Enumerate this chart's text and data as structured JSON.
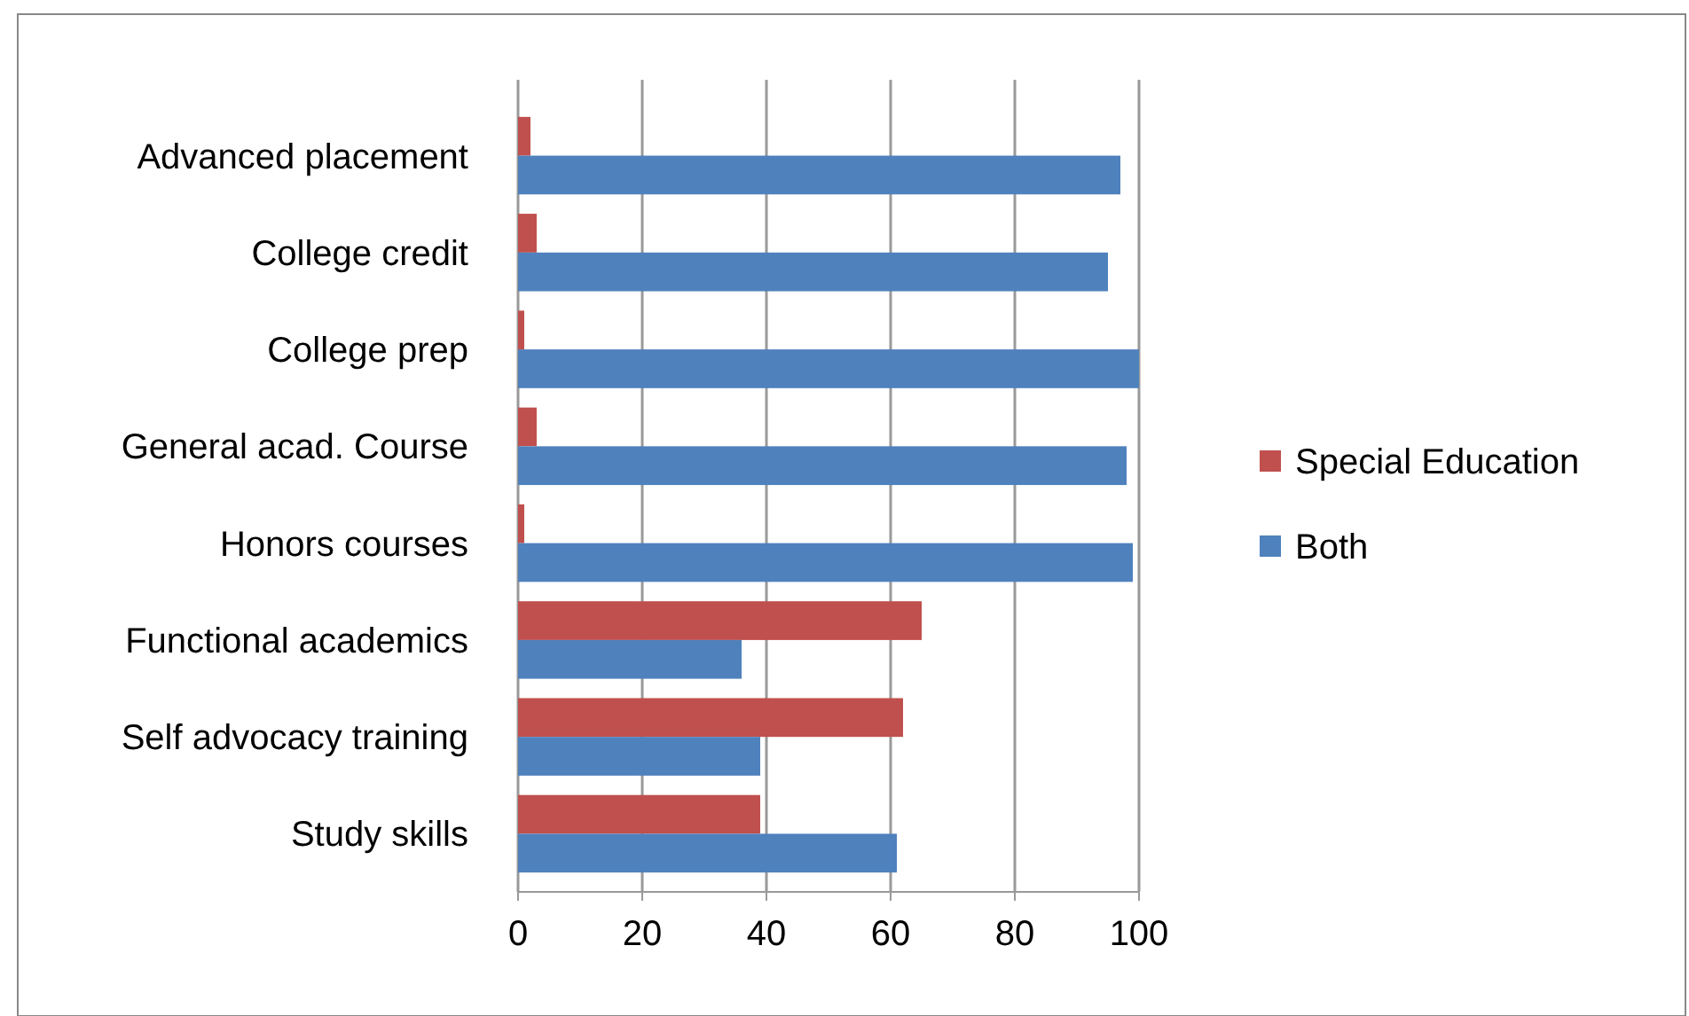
{
  "chart_data": {
    "type": "bar",
    "orientation": "horizontal",
    "categories": [
      "Advanced placement",
      "College credit",
      "College prep",
      "General acad.  Course",
      "Honors courses",
      "Functional academics",
      "Self advocacy training",
      "Study skills"
    ],
    "series": [
      {
        "name": "Special Education",
        "color": "#c0504d",
        "values": [
          2,
          3,
          1,
          3,
          1,
          65,
          62,
          39
        ]
      },
      {
        "name": "Both",
        "color": "#4f81bd",
        "values": [
          97,
          95,
          100,
          98,
          99,
          36,
          39,
          61
        ]
      }
    ],
    "xlim": [
      0,
      100
    ],
    "xticks": [
      0,
      20,
      40,
      60,
      80,
      100
    ],
    "grid": "x",
    "legend": "right"
  }
}
